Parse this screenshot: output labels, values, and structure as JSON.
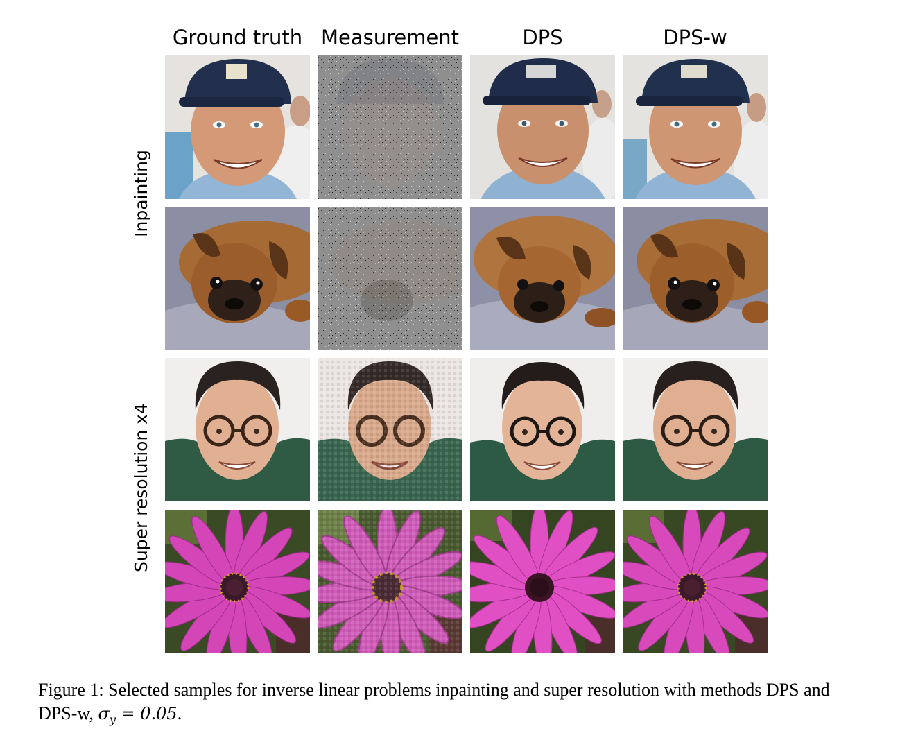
{
  "figure": {
    "columns": [
      "Ground truth",
      "Measurement",
      "DPS",
      "DPS-w"
    ],
    "rows": [
      {
        "label": "Inpainting",
        "samples": [
          "man-cap",
          "pug"
        ]
      },
      {
        "label": "Super resolution x4",
        "samples": [
          "man-glasses",
          "flower"
        ]
      }
    ],
    "caption": {
      "prefix": "Figure 1: Selected samples for inverse linear problems inpainting and super resolution with methods DPS and DPS-w,",
      "math_var": "σ",
      "math_sub": "y",
      "math_rest": " = 0.05",
      "suffix": "."
    }
  }
}
